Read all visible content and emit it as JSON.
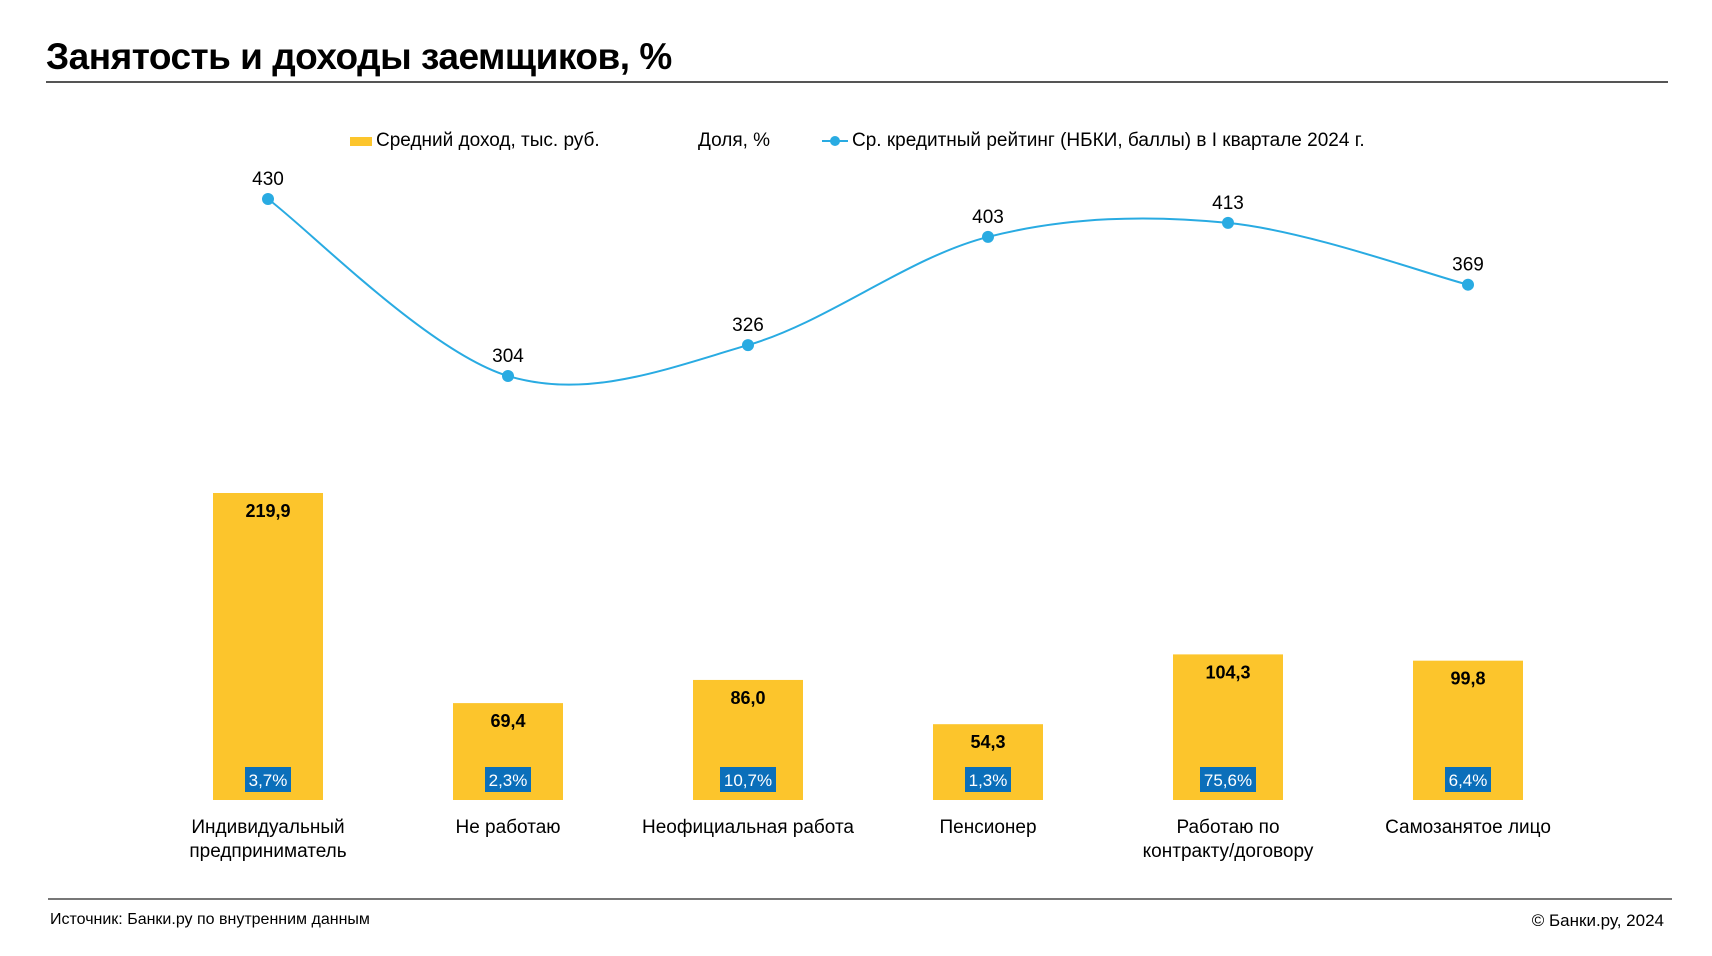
{
  "title": "Занятость и доходы заемщиков, %",
  "legend": {
    "income": "Средний доход, тыс. руб.",
    "share": "Доля, %",
    "rating": "Ср. кредитный рейтинг (НБКИ, баллы) в I квартале 2024 г."
  },
  "colors": {
    "bar": "#FCC52C",
    "line": "#29ABE2",
    "share_badge": "#0B6FBA",
    "text": "#000000"
  },
  "chart_data": {
    "type": "bar",
    "categories": [
      [
        "Индивидуальный",
        "предприниматель"
      ],
      [
        "Не работаю"
      ],
      [
        "Неофициальная работа"
      ],
      [
        "Пенсионер"
      ],
      [
        "Работаю по",
        "контракту/договору"
      ],
      [
        "Самозанятое лицо"
      ]
    ],
    "series": [
      {
        "name": "Средний доход, тыс. руб.",
        "type": "bar",
        "values": [
          219.9,
          69.4,
          86.0,
          54.3,
          104.3,
          99.8
        ],
        "labels": [
          "219,9",
          "69,4",
          "86,0",
          "54,3",
          "104,3",
          "99,8"
        ]
      },
      {
        "name": "Доля, %",
        "type": "label",
        "values": [
          3.7,
          2.3,
          10.7,
          1.3,
          75.6,
          6.4
        ],
        "labels": [
          "3,7%",
          "2,3%",
          "10,7%",
          "1,3%",
          "75,6%",
          "6,4%"
        ]
      },
      {
        "name": "Ср. кредитный рейтинг (НБКИ, баллы) в I квартале 2024 г.",
        "type": "line",
        "values": [
          430,
          304,
          326,
          403,
          413,
          369
        ],
        "labels": [
          "430",
          "304",
          "326",
          "403",
          "413",
          "369"
        ]
      }
    ],
    "legend_position": "top",
    "grid": false
  },
  "footer": {
    "source": "Источник: Банки.ру по внутренним данным",
    "copyright": "© Банки.ру, 2024"
  }
}
